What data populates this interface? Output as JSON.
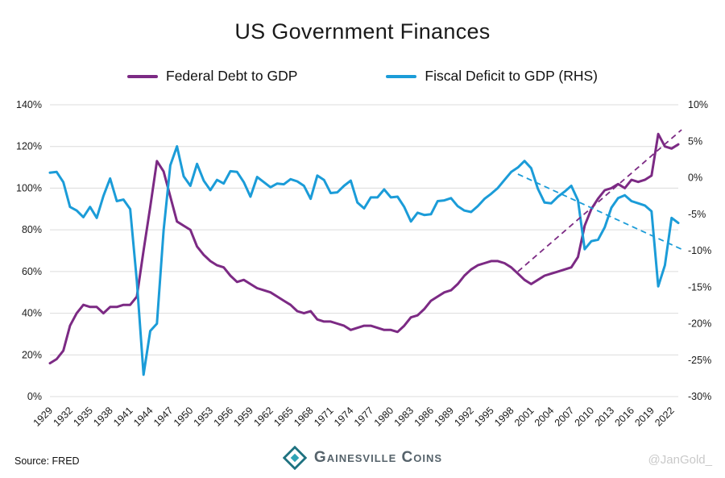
{
  "title": "US Government Finances",
  "legend": [
    {
      "label": "Federal Debt to GDP",
      "color": "#7c2a84"
    },
    {
      "label": "Fiscal Deficit to GDP (RHS)",
      "color": "#1b9cd8"
    }
  ],
  "footer": {
    "source": "Source: FRED",
    "brand": "Gainesville Coins",
    "handle": "@JanGold_"
  },
  "chart_data": {
    "type": "line",
    "title": "US Government Finances",
    "grid": "horizontal",
    "legend_position": "top",
    "left_axis": {
      "min": 0,
      "max": 140,
      "step": 20,
      "format": "percent"
    },
    "right_axis": {
      "min": -30,
      "max": 10,
      "step": 5,
      "format": "percent"
    },
    "x_tick_labels": [
      1929,
      1932,
      1935,
      1938,
      1941,
      1944,
      1947,
      1950,
      1953,
      1956,
      1959,
      1962,
      1965,
      1968,
      1971,
      1974,
      1977,
      1980,
      1983,
      1986,
      1989,
      1992,
      1995,
      1998,
      2001,
      2004,
      2007,
      2010,
      2013,
      2016,
      2019,
      2022
    ],
    "years": [
      1929,
      1930,
      1931,
      1932,
      1933,
      1934,
      1935,
      1936,
      1937,
      1938,
      1939,
      1940,
      1941,
      1942,
      1943,
      1944,
      1945,
      1946,
      1947,
      1948,
      1949,
      1950,
      1951,
      1952,
      1953,
      1954,
      1955,
      1956,
      1957,
      1958,
      1959,
      1960,
      1961,
      1962,
      1963,
      1964,
      1965,
      1966,
      1967,
      1968,
      1969,
      1970,
      1971,
      1972,
      1973,
      1974,
      1975,
      1976,
      1977,
      1978,
      1979,
      1980,
      1981,
      1982,
      1983,
      1984,
      1985,
      1986,
      1987,
      1988,
      1989,
      1990,
      1991,
      1992,
      1993,
      1994,
      1995,
      1996,
      1997,
      1998,
      1999,
      2000,
      2001,
      2002,
      2003,
      2004,
      2005,
      2006,
      2007,
      2008,
      2009,
      2010,
      2011,
      2012,
      2013,
      2014,
      2015,
      2016,
      2017,
      2018,
      2019,
      2020,
      2021,
      2022,
      2023
    ],
    "series": [
      {
        "name": "Federal Debt to GDP",
        "axis": "left",
        "color": "#7c2a84",
        "values": [
          16,
          18,
          22,
          34,
          40,
          44,
          43,
          43,
          40,
          43,
          43,
          44,
          44,
          48,
          70,
          91,
          113,
          108,
          96,
          84,
          82,
          80,
          72,
          68,
          65,
          63,
          62,
          58,
          55,
          56,
          54,
          52,
          51,
          50,
          48,
          46,
          44,
          41,
          40,
          41,
          37,
          36,
          36,
          35,
          34,
          32,
          33,
          34,
          34,
          33,
          32,
          32,
          31,
          34,
          38,
          39,
          42,
          46,
          48,
          50,
          51,
          54,
          58,
          61,
          63,
          64,
          65,
          65,
          64,
          62,
          59,
          56,
          54,
          56,
          58,
          59,
          60,
          61,
          62,
          67,
          82,
          90,
          95,
          99,
          100,
          102,
          100,
          104,
          103,
          104,
          106,
          126,
          120,
          119,
          121
        ]
      },
      {
        "name": "Fiscal Deficit to GDP (RHS)",
        "axis": "right",
        "color": "#1b9cd8",
        "values": [
          0.7,
          0.8,
          -0.6,
          -4,
          -4.5,
          -5.4,
          -4,
          -5.5,
          -2.5,
          -0.1,
          -3.2,
          -3,
          -4.3,
          -14.2,
          -27,
          -21,
          -20,
          -7.2,
          1.7,
          4.3,
          0.2,
          -1.1,
          1.9,
          -0.4,
          -1.7,
          -0.3,
          -0.8,
          0.9,
          0.8,
          -0.6,
          -2.6,
          0.1,
          -0.6,
          -1.3,
          -0.8,
          -0.9,
          -0.2,
          -0.5,
          -1.1,
          -2.9,
          0.3,
          -0.3,
          -2.1,
          -2,
          -1.1,
          -0.4,
          -3.4,
          -4.2,
          -2.7,
          -2.7,
          -1.6,
          -2.7,
          -2.6,
          -4,
          -6,
          -4.8,
          -5.1,
          -5,
          -3.2,
          -3.1,
          -2.8,
          -3.9,
          -4.5,
          -4.7,
          -3.9,
          -2.9,
          -2.2,
          -1.4,
          -0.3,
          0.8,
          1.4,
          2.3,
          1.3,
          -1.5,
          -3.4,
          -3.5,
          -2.6,
          -1.9,
          -1.1,
          -3.1,
          -9.8,
          -8.7,
          -8.5,
          -6.8,
          -4.1,
          -2.8,
          -2.4,
          -3.2,
          -3.5,
          -3.8,
          -4.6,
          -14.9,
          -12,
          -5.5,
          -6.2
        ]
      }
    ],
    "trendlines": [
      {
        "series": "Federal Debt to GDP",
        "axis": "left",
        "color": "#7c2a84",
        "x": [
          1999,
          2023.5
        ],
        "y": [
          60,
          128
        ]
      },
      {
        "series": "Fiscal Deficit to GDP (RHS)",
        "axis": "right",
        "color": "#1b9cd8",
        "x": [
          1999,
          2023.5
        ],
        "y": [
          0.5,
          -9.8
        ]
      }
    ]
  }
}
